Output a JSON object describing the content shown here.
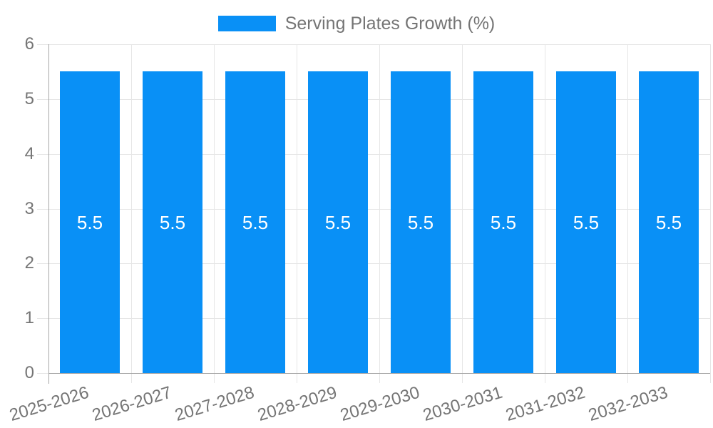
{
  "chart_data": {
    "type": "bar",
    "title": "Serving Plates Growth (%)",
    "legend": {
      "position": "top",
      "label": "Serving Plates Growth (%)"
    },
    "categories": [
      "2025-2026",
      "2026-2027",
      "2027-2028",
      "2028-2029",
      "2029-2030",
      "2030-2031",
      "2031-2032",
      "2032-2033"
    ],
    "series": [
      {
        "name": "Serving Plates Growth (%)",
        "values": [
          5.5,
          5.5,
          5.5,
          5.5,
          5.5,
          5.5,
          5.5,
          5.5
        ]
      }
    ],
    "bar_value_labels": [
      "5.5",
      "5.5",
      "5.5",
      "5.5",
      "5.5",
      "5.5",
      "5.5",
      "5.5"
    ],
    "xlabel": "",
    "ylabel": "",
    "ylim": [
      0,
      6
    ],
    "yticks": [
      0,
      1,
      2,
      3,
      4,
      5,
      6
    ],
    "ytick_labels": [
      "0",
      "1",
      "2",
      "3",
      "4",
      "5",
      "6"
    ],
    "grid": true,
    "colors": {
      "bar": "#0990f6",
      "grid_line": "#e6e6e6",
      "axis_line": "#a6a6a6",
      "tick_label": "#757575",
      "legend_text": "#757575",
      "value_label": "#ffffff",
      "background": "#ffffff"
    }
  }
}
